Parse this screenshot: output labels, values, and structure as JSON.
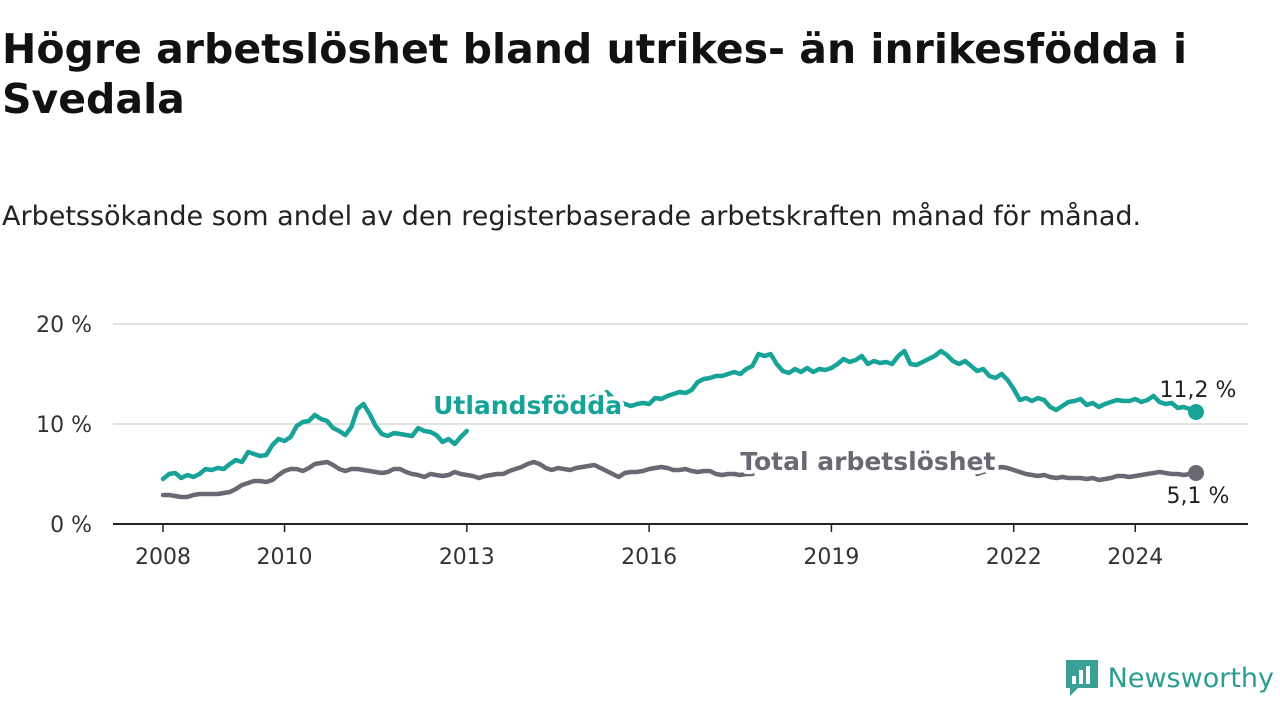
{
  "title": "Högre arbetslöshet bland utrikes- än inrikesfödda i Svedala",
  "subtitle": "Arbetssökande som andel av den registerbaserade arbetskraften månad för månad.",
  "brand": {
    "name": "Newsworthy",
    "icon": "newsworthy-logo-icon",
    "color": "#3a9f94"
  },
  "chart_data": {
    "type": "line",
    "x_unit": "year (decimal, monthly data)",
    "xlim": [
      2007.7,
      2025.15
    ],
    "ylim": [
      0,
      20
    ],
    "x_ticks": [
      {
        "value": 2008,
        "label": "2008"
      },
      {
        "value": 2010,
        "label": "2010"
      },
      {
        "value": 2013,
        "label": "2013"
      },
      {
        "value": 2016,
        "label": "2016"
      },
      {
        "value": 2019,
        "label": "2019"
      },
      {
        "value": 2022,
        "label": "2022"
      },
      {
        "value": 2024,
        "label": "2024"
      }
    ],
    "y_ticks": [
      {
        "value": 0,
        "label": "0 %"
      },
      {
        "value": 10,
        "label": "10 %"
      },
      {
        "value": 20,
        "label": "20 %"
      }
    ],
    "grid": true,
    "series": [
      {
        "name": "Utlandsfödda",
        "color": "#17a398",
        "end_label": "11,2 %",
        "points": [
          [
            2008.0,
            4.5
          ],
          [
            2008.1,
            5.0
          ],
          [
            2008.2,
            5.1
          ],
          [
            2008.3,
            4.6
          ],
          [
            2008.4,
            4.9
          ],
          [
            2008.5,
            4.7
          ],
          [
            2008.6,
            5.0
          ],
          [
            2008.7,
            5.5
          ],
          [
            2008.8,
            5.4
          ],
          [
            2008.9,
            5.6
          ],
          [
            2009.0,
            5.5
          ],
          [
            2009.1,
            6.0
          ],
          [
            2009.2,
            6.4
          ],
          [
            2009.3,
            6.2
          ],
          [
            2009.4,
            7.2
          ],
          [
            2009.5,
            7.0
          ],
          [
            2009.6,
            6.8
          ],
          [
            2009.7,
            6.9
          ],
          [
            2009.8,
            7.9
          ],
          [
            2009.9,
            8.5
          ],
          [
            2010.0,
            8.3
          ],
          [
            2010.1,
            8.7
          ],
          [
            2010.2,
            9.8
          ],
          [
            2010.3,
            10.2
          ],
          [
            2010.4,
            10.3
          ],
          [
            2010.5,
            10.9
          ],
          [
            2010.6,
            10.5
          ],
          [
            2010.7,
            10.3
          ],
          [
            2010.8,
            9.6
          ],
          [
            2010.9,
            9.3
          ],
          [
            2011.0,
            8.9
          ],
          [
            2011.1,
            9.7
          ],
          [
            2011.2,
            11.5
          ],
          [
            2011.3,
            12.0
          ],
          [
            2011.4,
            11.0
          ],
          [
            2011.5,
            9.8
          ],
          [
            2011.6,
            9.0
          ],
          [
            2011.7,
            8.8
          ],
          [
            2011.8,
            9.1
          ],
          [
            2011.9,
            9.0
          ],
          [
            2012.0,
            8.9
          ],
          [
            2012.1,
            8.8
          ],
          [
            2012.2,
            9.6
          ],
          [
            2012.3,
            9.3
          ],
          [
            2012.4,
            9.2
          ],
          [
            2012.5,
            8.9
          ],
          [
            2012.6,
            8.2
          ],
          [
            2012.7,
            8.5
          ],
          [
            2012.8,
            8.0
          ],
          [
            2012.9,
            8.7
          ],
          [
            2013.0,
            9.3
          ],
          [
            2015.0,
            12.5
          ],
          [
            2015.1,
            12.8
          ],
          [
            2015.2,
            12.6
          ],
          [
            2015.3,
            13.2
          ],
          [
            2015.4,
            12.6
          ],
          [
            2015.5,
            12.3
          ],
          [
            2015.6,
            12.0
          ],
          [
            2015.7,
            11.8
          ],
          [
            2015.8,
            12.0
          ],
          [
            2015.9,
            12.1
          ],
          [
            2016.0,
            12.0
          ],
          [
            2016.1,
            12.6
          ],
          [
            2016.2,
            12.5
          ],
          [
            2016.3,
            12.8
          ],
          [
            2016.4,
            13.0
          ],
          [
            2016.5,
            13.2
          ],
          [
            2016.6,
            13.1
          ],
          [
            2016.7,
            13.4
          ],
          [
            2016.8,
            14.2
          ],
          [
            2016.9,
            14.5
          ],
          [
            2017.0,
            14.6
          ],
          [
            2017.1,
            14.8
          ],
          [
            2017.2,
            14.8
          ],
          [
            2017.3,
            15.0
          ],
          [
            2017.4,
            15.2
          ],
          [
            2017.5,
            15.0
          ],
          [
            2017.6,
            15.5
          ],
          [
            2017.7,
            15.8
          ],
          [
            2017.8,
            17.0
          ],
          [
            2017.9,
            16.8
          ],
          [
            2018.0,
            17.0
          ],
          [
            2018.1,
            16.0
          ],
          [
            2018.2,
            15.3
          ],
          [
            2018.3,
            15.1
          ],
          [
            2018.4,
            15.5
          ],
          [
            2018.5,
            15.2
          ],
          [
            2018.6,
            15.6
          ],
          [
            2018.7,
            15.2
          ],
          [
            2018.8,
            15.5
          ],
          [
            2018.9,
            15.4
          ],
          [
            2019.0,
            15.6
          ],
          [
            2019.1,
            16.0
          ],
          [
            2019.2,
            16.5
          ],
          [
            2019.3,
            16.2
          ],
          [
            2019.4,
            16.4
          ],
          [
            2019.5,
            16.8
          ],
          [
            2019.6,
            16.0
          ],
          [
            2019.7,
            16.3
          ],
          [
            2019.8,
            16.1
          ],
          [
            2019.9,
            16.2
          ],
          [
            2020.0,
            16.0
          ],
          [
            2020.1,
            16.8
          ],
          [
            2020.2,
            17.3
          ],
          [
            2020.3,
            16.0
          ],
          [
            2020.4,
            15.9
          ],
          [
            2020.5,
            16.2
          ],
          [
            2020.6,
            16.5
          ],
          [
            2020.7,
            16.8
          ],
          [
            2020.8,
            17.3
          ],
          [
            2020.9,
            16.9
          ],
          [
            2021.0,
            16.3
          ],
          [
            2021.1,
            16.0
          ],
          [
            2021.2,
            16.3
          ],
          [
            2021.3,
            15.8
          ],
          [
            2021.4,
            15.3
          ],
          [
            2021.5,
            15.5
          ],
          [
            2021.6,
            14.8
          ],
          [
            2021.7,
            14.6
          ],
          [
            2021.8,
            15.0
          ],
          [
            2021.9,
            14.4
          ],
          [
            2022.0,
            13.5
          ],
          [
            2022.1,
            12.4
          ],
          [
            2022.2,
            12.6
          ],
          [
            2022.3,
            12.3
          ],
          [
            2022.4,
            12.6
          ],
          [
            2022.5,
            12.4
          ],
          [
            2022.6,
            11.7
          ],
          [
            2022.7,
            11.4
          ],
          [
            2022.8,
            11.8
          ],
          [
            2022.9,
            12.2
          ],
          [
            2023.0,
            12.3
          ],
          [
            2023.1,
            12.5
          ],
          [
            2023.2,
            11.9
          ],
          [
            2023.3,
            12.1
          ],
          [
            2023.4,
            11.7
          ],
          [
            2023.5,
            12.0
          ],
          [
            2023.6,
            12.2
          ],
          [
            2023.7,
            12.4
          ],
          [
            2023.8,
            12.3
          ],
          [
            2023.9,
            12.3
          ],
          [
            2024.0,
            12.5
          ],
          [
            2024.1,
            12.2
          ],
          [
            2024.2,
            12.4
          ],
          [
            2024.3,
            12.8
          ],
          [
            2024.4,
            12.2
          ],
          [
            2024.5,
            12.0
          ],
          [
            2024.6,
            12.1
          ],
          [
            2024.7,
            11.6
          ],
          [
            2024.8,
            11.7
          ],
          [
            2024.9,
            11.5
          ],
          [
            2025.0,
            11.2
          ]
        ]
      },
      {
        "name": "Total arbetslöshet",
        "color": "#6b6874",
        "end_label": "5,1 %",
        "points": [
          [
            2008.0,
            2.9
          ],
          [
            2008.1,
            2.9
          ],
          [
            2008.2,
            2.8
          ],
          [
            2008.3,
            2.7
          ],
          [
            2008.4,
            2.7
          ],
          [
            2008.5,
            2.9
          ],
          [
            2008.6,
            3.0
          ],
          [
            2008.7,
            3.0
          ],
          [
            2008.8,
            3.0
          ],
          [
            2008.9,
            3.0
          ],
          [
            2009.0,
            3.1
          ],
          [
            2009.1,
            3.2
          ],
          [
            2009.2,
            3.5
          ],
          [
            2009.3,
            3.9
          ],
          [
            2009.4,
            4.1
          ],
          [
            2009.5,
            4.3
          ],
          [
            2009.6,
            4.3
          ],
          [
            2009.7,
            4.2
          ],
          [
            2009.8,
            4.4
          ],
          [
            2009.9,
            4.9
          ],
          [
            2010.0,
            5.3
          ],
          [
            2010.1,
            5.5
          ],
          [
            2010.2,
            5.5
          ],
          [
            2010.3,
            5.3
          ],
          [
            2010.4,
            5.6
          ],
          [
            2010.5,
            6.0
          ],
          [
            2010.6,
            6.1
          ],
          [
            2010.7,
            6.2
          ],
          [
            2010.8,
            5.9
          ],
          [
            2010.9,
            5.5
          ],
          [
            2011.0,
            5.3
          ],
          [
            2011.1,
            5.5
          ],
          [
            2011.2,
            5.5
          ],
          [
            2011.3,
            5.4
          ],
          [
            2011.4,
            5.3
          ],
          [
            2011.5,
            5.2
          ],
          [
            2011.6,
            5.1
          ],
          [
            2011.7,
            5.2
          ],
          [
            2011.8,
            5.5
          ],
          [
            2011.9,
            5.5
          ],
          [
            2012.0,
            5.2
          ],
          [
            2012.1,
            5.0
          ],
          [
            2012.2,
            4.9
          ],
          [
            2012.3,
            4.7
          ],
          [
            2012.4,
            5.0
          ],
          [
            2012.5,
            4.9
          ],
          [
            2012.6,
            4.8
          ],
          [
            2012.7,
            4.9
          ],
          [
            2012.8,
            5.2
          ],
          [
            2012.9,
            5.0
          ],
          [
            2013.0,
            4.9
          ],
          [
            2013.1,
            4.8
          ],
          [
            2013.2,
            4.6
          ],
          [
            2013.3,
            4.8
          ],
          [
            2013.4,
            4.9
          ],
          [
            2013.5,
            5.0
          ],
          [
            2013.6,
            5.0
          ],
          [
            2013.7,
            5.3
          ],
          [
            2013.8,
            5.5
          ],
          [
            2013.9,
            5.7
          ],
          [
            2014.0,
            6.0
          ],
          [
            2014.1,
            6.2
          ],
          [
            2014.2,
            6.0
          ],
          [
            2014.3,
            5.6
          ],
          [
            2014.4,
            5.4
          ],
          [
            2014.5,
            5.6
          ],
          [
            2014.6,
            5.5
          ],
          [
            2014.7,
            5.4
          ],
          [
            2014.8,
            5.6
          ],
          [
            2014.9,
            5.7
          ],
          [
            2015.0,
            5.8
          ],
          [
            2015.1,
            5.9
          ],
          [
            2015.2,
            5.6
          ],
          [
            2015.3,
            5.3
          ],
          [
            2015.4,
            5.0
          ],
          [
            2015.5,
            4.7
          ],
          [
            2015.6,
            5.1
          ],
          [
            2015.7,
            5.2
          ],
          [
            2015.8,
            5.2
          ],
          [
            2015.9,
            5.3
          ],
          [
            2016.0,
            5.5
          ],
          [
            2016.1,
            5.6
          ],
          [
            2016.2,
            5.7
          ],
          [
            2016.3,
            5.6
          ],
          [
            2016.4,
            5.4
          ],
          [
            2016.5,
            5.4
          ],
          [
            2016.6,
            5.5
          ],
          [
            2016.7,
            5.3
          ],
          [
            2016.8,
            5.2
          ],
          [
            2016.9,
            5.3
          ],
          [
            2017.0,
            5.3
          ],
          [
            2017.1,
            5.0
          ],
          [
            2017.2,
            4.9
          ],
          [
            2017.3,
            5.0
          ],
          [
            2017.4,
            5.0
          ],
          [
            2017.5,
            4.9
          ],
          [
            2017.6,
            5.0
          ],
          [
            2017.7,
            5.0
          ],
          [
            2021.4,
            5.0
          ],
          [
            2021.5,
            5.2
          ],
          [
            2021.6,
            5.4
          ],
          [
            2021.7,
            5.6
          ],
          [
            2021.8,
            5.7
          ],
          [
            2021.9,
            5.6
          ],
          [
            2022.0,
            5.4
          ],
          [
            2022.1,
            5.2
          ],
          [
            2022.2,
            5.0
          ],
          [
            2022.3,
            4.9
          ],
          [
            2022.4,
            4.8
          ],
          [
            2022.5,
            4.9
          ],
          [
            2022.6,
            4.7
          ],
          [
            2022.7,
            4.6
          ],
          [
            2022.8,
            4.7
          ],
          [
            2022.9,
            4.6
          ],
          [
            2023.0,
            4.6
          ],
          [
            2023.1,
            4.6
          ],
          [
            2023.2,
            4.5
          ],
          [
            2023.3,
            4.6
          ],
          [
            2023.4,
            4.4
          ],
          [
            2023.5,
            4.5
          ],
          [
            2023.6,
            4.6
          ],
          [
            2023.7,
            4.8
          ],
          [
            2023.8,
            4.8
          ],
          [
            2023.9,
            4.7
          ],
          [
            2024.0,
            4.8
          ],
          [
            2024.1,
            4.9
          ],
          [
            2024.2,
            5.0
          ],
          [
            2024.3,
            5.1
          ],
          [
            2024.4,
            5.2
          ],
          [
            2024.5,
            5.1
          ],
          [
            2024.6,
            5.0
          ],
          [
            2024.7,
            5.0
          ],
          [
            2024.8,
            4.9
          ],
          [
            2024.9,
            5.0
          ],
          [
            2025.0,
            5.1
          ]
        ]
      }
    ],
    "annotations": [
      {
        "text": "Utlandsfödda",
        "series": "Utlandsfödda",
        "x": 2014.0,
        "y": 11.0
      },
      {
        "text": "Total arbetslöshet",
        "series": "Total arbetslöshet",
        "x": 2019.6,
        "y": 5.4
      }
    ]
  }
}
